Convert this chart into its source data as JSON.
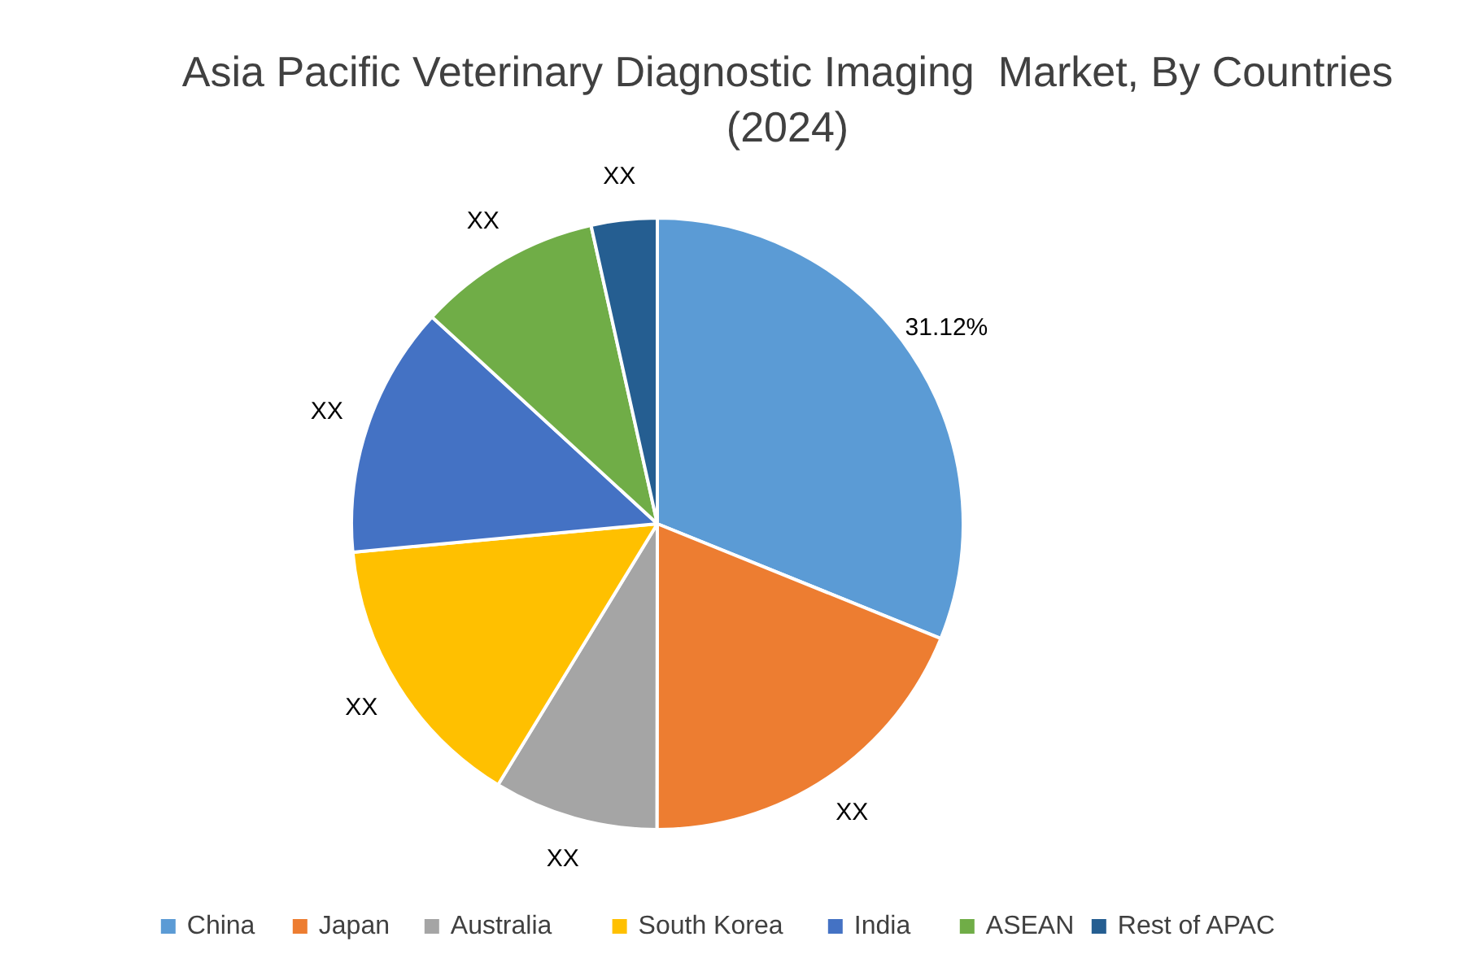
{
  "chart_data": {
    "type": "pie",
    "title": "Asia Pacific Veterinary Diagnostic Imaging  Market, By Countries (2024)",
    "categories": [
      "China",
      "Japan",
      "Australia",
      "South Korea",
      "India",
      "ASEAN",
      "Rest of APAC"
    ],
    "values": [
      31.12,
      18.9,
      8.7,
      14.8,
      13.3,
      9.7,
      3.48
    ],
    "colors": [
      "#5b9bd5",
      "#ed7d31",
      "#a5a5a5",
      "#ffc000",
      "#4472c4",
      "#70ad47",
      "#255e91"
    ],
    "value_labels": [
      "31.12%",
      "XX",
      "XX",
      "XX",
      "XX",
      "XX",
      "XX"
    ],
    "legend": "bottom"
  }
}
